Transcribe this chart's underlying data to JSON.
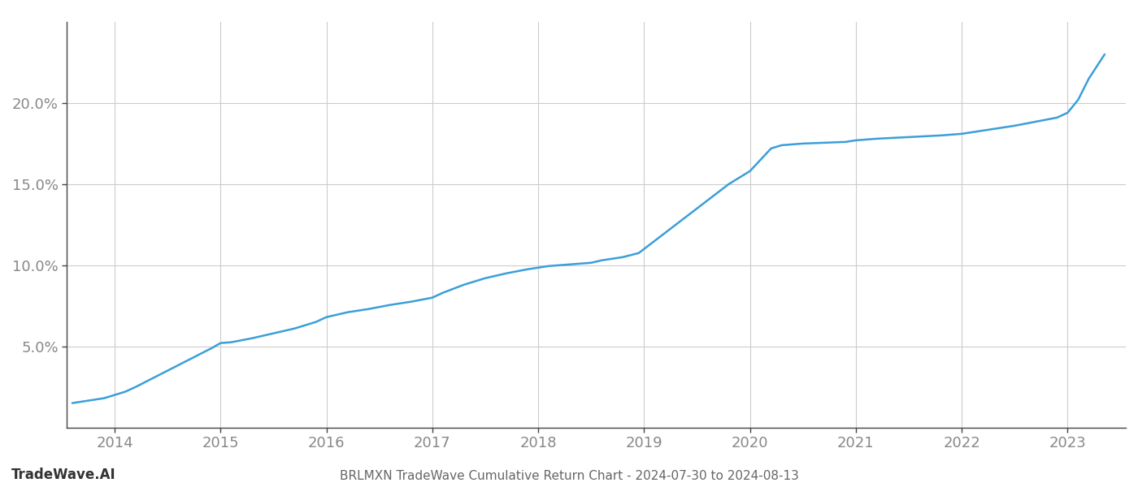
{
  "title": "BRLMXN TradeWave Cumulative Return Chart - 2024-07-30 to 2024-08-13",
  "line_color": "#3a9fd8",
  "background_color": "#ffffff",
  "grid_color": "#cccccc",
  "axis_color": "#888888",
  "tick_label_color": "#888888",
  "footer_left": "TradeWave.AI",
  "x_values": [
    2013.6,
    2013.75,
    2013.9,
    2014.0,
    2014.1,
    2014.2,
    2014.35,
    2014.5,
    2014.65,
    2014.8,
    2014.92,
    2015.0,
    2015.1,
    2015.3,
    2015.5,
    2015.7,
    2015.9,
    2016.0,
    2016.2,
    2016.4,
    2016.6,
    2016.8,
    2017.0,
    2017.1,
    2017.3,
    2017.5,
    2017.7,
    2017.9,
    2018.0,
    2018.1,
    2018.2,
    2018.3,
    2018.4,
    2018.5,
    2018.6,
    2018.8,
    2018.95,
    2019.0,
    2019.2,
    2019.4,
    2019.6,
    2019.8,
    2020.0,
    2020.1,
    2020.2,
    2020.3,
    2020.5,
    2020.7,
    2020.9,
    2021.0,
    2021.2,
    2021.5,
    2021.8,
    2022.0,
    2022.2,
    2022.5,
    2022.7,
    2022.9,
    2023.0,
    2023.1,
    2023.2,
    2023.35
  ],
  "y_values": [
    1.5,
    1.65,
    1.8,
    2.0,
    2.2,
    2.5,
    3.0,
    3.5,
    4.0,
    4.5,
    4.9,
    5.2,
    5.25,
    5.5,
    5.8,
    6.1,
    6.5,
    6.8,
    7.1,
    7.3,
    7.55,
    7.75,
    8.0,
    8.3,
    8.8,
    9.2,
    9.5,
    9.75,
    9.85,
    9.95,
    10.0,
    10.05,
    10.1,
    10.15,
    10.3,
    10.5,
    10.75,
    11.0,
    12.0,
    13.0,
    14.0,
    15.0,
    15.8,
    16.5,
    17.2,
    17.4,
    17.5,
    17.55,
    17.6,
    17.7,
    17.8,
    17.9,
    18.0,
    18.1,
    18.3,
    18.6,
    18.85,
    19.1,
    19.4,
    20.2,
    21.5,
    23.0
  ],
  "x_ticks": [
    2014,
    2015,
    2016,
    2017,
    2018,
    2019,
    2020,
    2021,
    2022,
    2023
  ],
  "y_ticks": [
    5.0,
    10.0,
    15.0,
    20.0
  ],
  "ylim": [
    0.0,
    25.0
  ],
  "xlim": [
    2013.55,
    2023.55
  ],
  "line_width": 1.8
}
